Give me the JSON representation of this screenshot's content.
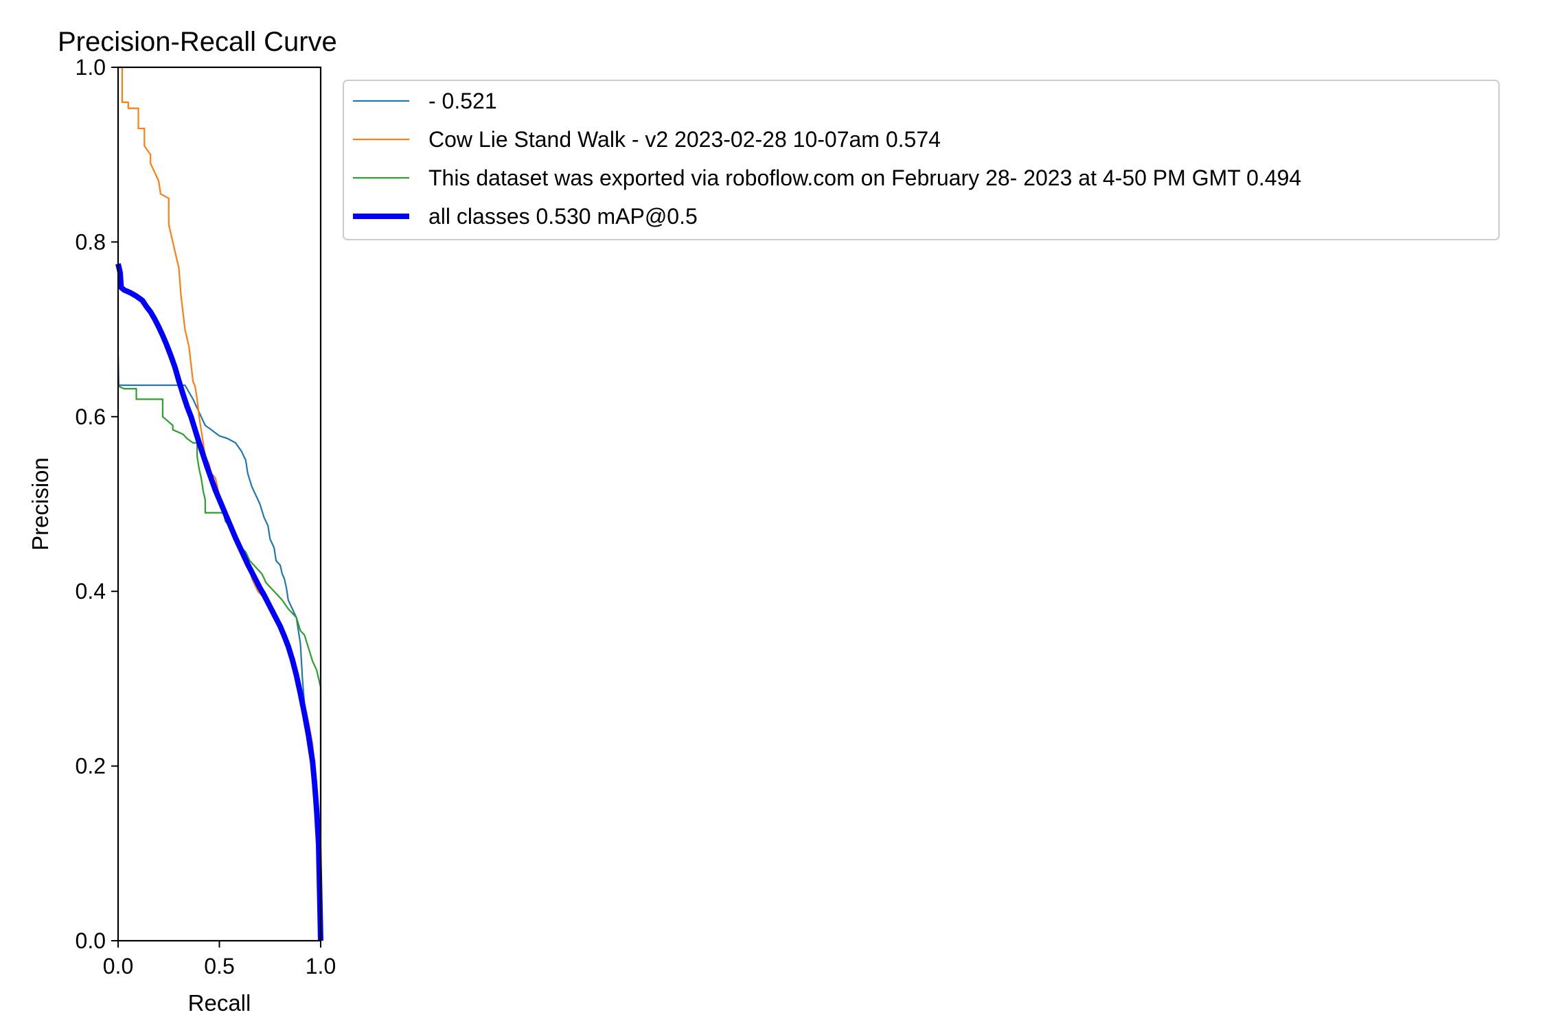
{
  "chart_data": {
    "type": "line",
    "title": "Precision-Recall Curve",
    "xlabel": "Recall",
    "ylabel": "Precision",
    "xlim": [
      0,
      1
    ],
    "ylim": [
      0,
      1
    ],
    "xticks": [
      "0.0",
      "0.5",
      "1.0"
    ],
    "yticks": [
      "0.0",
      "0.2",
      "0.4",
      "0.6",
      "0.8",
      "1.0"
    ],
    "grid": false,
    "legend_position": "outside-right-top",
    "series": [
      {
        "name": "- 0.521",
        "color": "#1f77b4",
        "line_width": "thin",
        "points": [
          [
            0.0,
            0.67
          ],
          [
            0.003,
            0.636
          ],
          [
            0.1,
            0.636
          ],
          [
            0.2,
            0.636
          ],
          [
            0.33,
            0.636
          ],
          [
            0.37,
            0.62
          ],
          [
            0.4,
            0.605
          ],
          [
            0.43,
            0.59
          ],
          [
            0.46,
            0.585
          ],
          [
            0.5,
            0.578
          ],
          [
            0.54,
            0.575
          ],
          [
            0.58,
            0.57
          ],
          [
            0.61,
            0.56
          ],
          [
            0.63,
            0.55
          ],
          [
            0.64,
            0.535
          ],
          [
            0.66,
            0.52
          ],
          [
            0.68,
            0.51
          ],
          [
            0.7,
            0.5
          ],
          [
            0.72,
            0.485
          ],
          [
            0.74,
            0.475
          ],
          [
            0.75,
            0.46
          ],
          [
            0.77,
            0.45
          ],
          [
            0.78,
            0.435
          ],
          [
            0.8,
            0.43
          ],
          [
            0.81,
            0.42
          ],
          [
            0.82,
            0.415
          ],
          [
            0.83,
            0.405
          ],
          [
            0.84,
            0.39
          ],
          [
            0.86,
            0.38
          ],
          [
            0.88,
            0.37
          ],
          [
            0.89,
            0.355
          ],
          [
            0.9,
            0.34
          ],
          [
            0.91,
            0.3
          ],
          [
            0.92,
            0.27
          ],
          [
            0.93,
            0.24
          ],
          [
            0.95,
            0.22
          ],
          [
            0.96,
            0.2
          ],
          [
            0.97,
            0.18
          ],
          [
            0.98,
            0.16
          ],
          [
            0.99,
            0.12
          ],
          [
            1.0,
            0.0
          ]
        ]
      },
      {
        "name": "Cow Lie Stand Walk - v2 2023-02-28 10-07am 0.574",
        "color": "#ff7f0e",
        "line_width": "thin",
        "points": [
          [
            0.0,
            1.0
          ],
          [
            0.02,
            1.0
          ],
          [
            0.02,
            0.96
          ],
          [
            0.05,
            0.96
          ],
          [
            0.05,
            0.953
          ],
          [
            0.1,
            0.953
          ],
          [
            0.1,
            0.93
          ],
          [
            0.13,
            0.93
          ],
          [
            0.13,
            0.91
          ],
          [
            0.16,
            0.9
          ],
          [
            0.16,
            0.89
          ],
          [
            0.18,
            0.88
          ],
          [
            0.2,
            0.87
          ],
          [
            0.21,
            0.855
          ],
          [
            0.25,
            0.85
          ],
          [
            0.25,
            0.82
          ],
          [
            0.27,
            0.8
          ],
          [
            0.28,
            0.79
          ],
          [
            0.3,
            0.77
          ],
          [
            0.31,
            0.74
          ],
          [
            0.32,
            0.72
          ],
          [
            0.33,
            0.7
          ],
          [
            0.35,
            0.68
          ],
          [
            0.36,
            0.66
          ],
          [
            0.37,
            0.64
          ],
          [
            0.38,
            0.635
          ],
          [
            0.39,
            0.62
          ],
          [
            0.4,
            0.6
          ],
          [
            0.41,
            0.585
          ],
          [
            0.42,
            0.57
          ],
          [
            0.43,
            0.555
          ],
          [
            0.45,
            0.545
          ],
          [
            0.46,
            0.535
          ],
          [
            0.48,
            0.53
          ],
          [
            0.49,
            0.52
          ],
          [
            0.5,
            0.51
          ],
          [
            0.52,
            0.5
          ],
          [
            0.54,
            0.485
          ],
          [
            0.56,
            0.475
          ],
          [
            0.58,
            0.465
          ],
          [
            0.6,
            0.455
          ],
          [
            0.61,
            0.445
          ],
          [
            0.63,
            0.435
          ],
          [
            0.65,
            0.425
          ],
          [
            0.66,
            0.415
          ],
          [
            0.67,
            0.41
          ],
          [
            0.69,
            0.4
          ],
          [
            0.71,
            0.395
          ],
          [
            0.73,
            0.388
          ],
          [
            0.75,
            0.38
          ],
          [
            0.77,
            0.37
          ],
          [
            0.79,
            0.36
          ],
          [
            0.81,
            0.355
          ],
          [
            0.83,
            0.345
          ],
          [
            0.85,
            0.335
          ],
          [
            0.87,
            0.32
          ],
          [
            0.88,
            0.305
          ],
          [
            0.9,
            0.29
          ],
          [
            0.92,
            0.27
          ],
          [
            0.94,
            0.25
          ],
          [
            0.96,
            0.225
          ],
          [
            0.97,
            0.2
          ],
          [
            0.98,
            0.17
          ],
          [
            0.99,
            0.13
          ],
          [
            1.0,
            0.0
          ]
        ]
      },
      {
        "name": "This dataset was exported via roboflow.com on February 28- 2023 at 4-50 PM GMT 0.494",
        "color": "#2ca02c",
        "line_width": "thin",
        "points": [
          [
            0.0,
            0.635
          ],
          [
            0.03,
            0.632
          ],
          [
            0.09,
            0.632
          ],
          [
            0.09,
            0.62
          ],
          [
            0.22,
            0.62
          ],
          [
            0.22,
            0.6
          ],
          [
            0.27,
            0.59
          ],
          [
            0.27,
            0.585
          ],
          [
            0.32,
            0.58
          ],
          [
            0.34,
            0.575
          ],
          [
            0.37,
            0.57
          ],
          [
            0.39,
            0.57
          ],
          [
            0.39,
            0.555
          ],
          [
            0.4,
            0.54
          ],
          [
            0.41,
            0.53
          ],
          [
            0.42,
            0.515
          ],
          [
            0.43,
            0.505
          ],
          [
            0.43,
            0.49
          ],
          [
            0.52,
            0.49
          ],
          [
            0.53,
            0.48
          ],
          [
            0.55,
            0.475
          ],
          [
            0.57,
            0.465
          ],
          [
            0.59,
            0.455
          ],
          [
            0.61,
            0.45
          ],
          [
            0.63,
            0.445
          ],
          [
            0.65,
            0.435
          ],
          [
            0.67,
            0.43
          ],
          [
            0.69,
            0.425
          ],
          [
            0.71,
            0.42
          ],
          [
            0.73,
            0.41
          ],
          [
            0.75,
            0.405
          ],
          [
            0.77,
            0.4
          ],
          [
            0.79,
            0.395
          ],
          [
            0.81,
            0.39
          ],
          [
            0.84,
            0.38
          ],
          [
            0.86,
            0.375
          ],
          [
            0.88,
            0.37
          ],
          [
            0.9,
            0.355
          ],
          [
            0.92,
            0.35
          ],
          [
            0.94,
            0.335
          ],
          [
            0.96,
            0.32
          ],
          [
            0.98,
            0.31
          ],
          [
            0.99,
            0.3
          ],
          [
            1.0,
            0.29
          ],
          [
            1.0,
            0.0
          ]
        ]
      },
      {
        "name": "all classes 0.530 mAP@0.5",
        "color": "#0000ff",
        "line_width": "thick",
        "points": [
          [
            0.0,
            0.775
          ],
          [
            0.01,
            0.765
          ],
          [
            0.015,
            0.748
          ],
          [
            0.03,
            0.745
          ],
          [
            0.06,
            0.742
          ],
          [
            0.09,
            0.738
          ],
          [
            0.12,
            0.733
          ],
          [
            0.14,
            0.726
          ],
          [
            0.16,
            0.72
          ],
          [
            0.18,
            0.712
          ],
          [
            0.2,
            0.703
          ],
          [
            0.22,
            0.693
          ],
          [
            0.24,
            0.682
          ],
          [
            0.26,
            0.67
          ],
          [
            0.28,
            0.657
          ],
          [
            0.3,
            0.641
          ],
          [
            0.32,
            0.626
          ],
          [
            0.34,
            0.612
          ],
          [
            0.36,
            0.6
          ],
          [
            0.38,
            0.585
          ],
          [
            0.4,
            0.57
          ],
          [
            0.42,
            0.556
          ],
          [
            0.44,
            0.542
          ],
          [
            0.46,
            0.529
          ],
          [
            0.48,
            0.516
          ],
          [
            0.5,
            0.505
          ],
          [
            0.52,
            0.494
          ],
          [
            0.54,
            0.483
          ],
          [
            0.56,
            0.472
          ],
          [
            0.58,
            0.461
          ],
          [
            0.6,
            0.451
          ],
          [
            0.62,
            0.441
          ],
          [
            0.64,
            0.431
          ],
          [
            0.66,
            0.422
          ],
          [
            0.68,
            0.413
          ],
          [
            0.7,
            0.404
          ],
          [
            0.72,
            0.396
          ],
          [
            0.74,
            0.387
          ],
          [
            0.76,
            0.378
          ],
          [
            0.78,
            0.369
          ],
          [
            0.8,
            0.36
          ],
          [
            0.82,
            0.349
          ],
          [
            0.84,
            0.337
          ],
          [
            0.86,
            0.322
          ],
          [
            0.88,
            0.304
          ],
          [
            0.9,
            0.283
          ],
          [
            0.92,
            0.26
          ],
          [
            0.94,
            0.235
          ],
          [
            0.96,
            0.205
          ],
          [
            0.97,
            0.18
          ],
          [
            0.98,
            0.15
          ],
          [
            0.99,
            0.11
          ],
          [
            1.0,
            0.0
          ]
        ]
      }
    ]
  }
}
